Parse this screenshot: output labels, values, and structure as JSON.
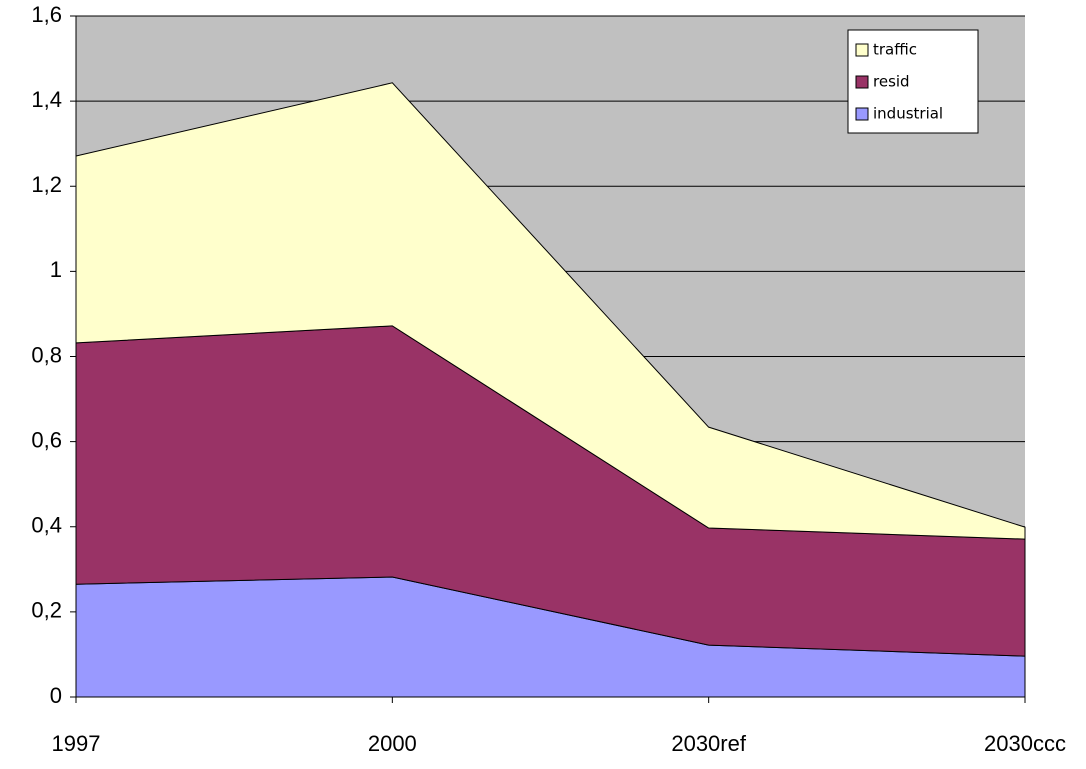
{
  "chart_data": {
    "type": "stacked_area",
    "categories": [
      "1997",
      "2000",
      "2030ref",
      "2030ccc"
    ],
    "series": [
      {
        "name": "industrial",
        "color": "#9999ff",
        "values": [
          0.265,
          0.282,
          0.122,
          0.096
        ]
      },
      {
        "name": "resid",
        "color": "#993366",
        "values": [
          0.567,
          0.59,
          0.275,
          0.275
        ]
      },
      {
        "name": "traffic",
        "color": "#ffffcc",
        "values": [
          0.439,
          0.571,
          0.237,
          0.028
        ]
      }
    ],
    "ylim": [
      0,
      1.6
    ],
    "yticks": [
      0,
      {
        "value": 0.2,
        "label": "0,2"
      },
      {
        "value": 0.4,
        "label": "0,4"
      },
      {
        "value": 0.6,
        "label": "0,6"
      },
      {
        "value": 0.8,
        "label": "0,8"
      },
      1,
      {
        "value": 1.2,
        "label": "1,2"
      },
      {
        "value": 1.4,
        "label": "1,4"
      },
      {
        "value": 1.6,
        "label": "1,6"
      }
    ],
    "grid": true,
    "legend": "upper right",
    "background": "#c0c0c0"
  }
}
